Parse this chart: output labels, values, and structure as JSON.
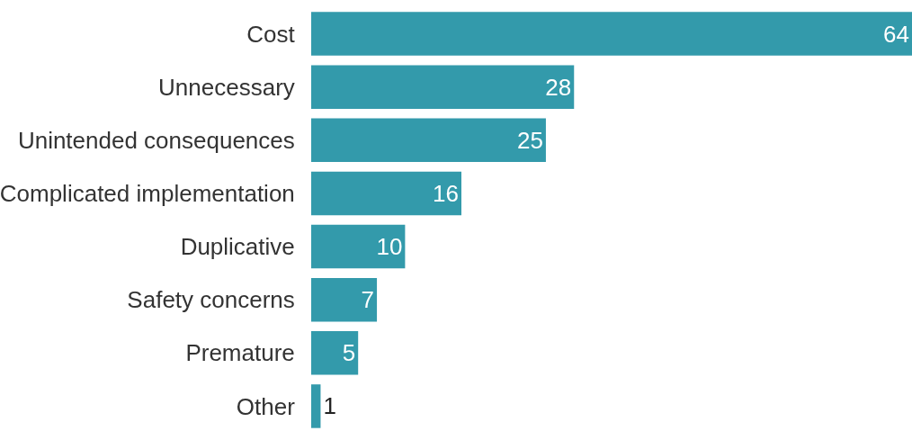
{
  "chart_data": {
    "type": "bar",
    "orientation": "horizontal",
    "categories": [
      "Cost",
      "Unnecessary",
      "Unintended consequences",
      "Complicated implementation",
      "Duplicative",
      "Safety concerns",
      "Premature",
      "Other"
    ],
    "values": [
      64,
      28,
      25,
      16,
      10,
      7,
      5,
      1
    ],
    "color": "#339aab",
    "data_labels": true
  }
}
